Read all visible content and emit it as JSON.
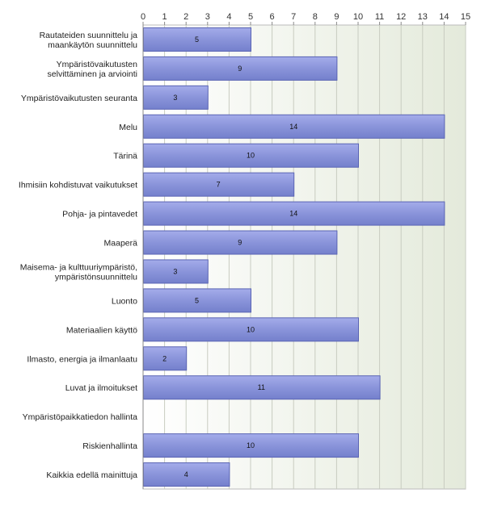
{
  "chart_data": {
    "type": "bar",
    "orientation": "horizontal",
    "categories": [
      [
        "Rautateiden suunnittelu ja",
        "maankäytön suunnittelu"
      ],
      [
        "Ympäristövaikutusten",
        "selvittäminen ja arviointi"
      ],
      [
        "Ympäristövaikutusten seuranta"
      ],
      [
        "Melu"
      ],
      [
        "Tärinä"
      ],
      [
        "Ihmisiin kohdistuvat vaikutukset"
      ],
      [
        "Pohja- ja pintavedet"
      ],
      [
        "Maaperä"
      ],
      [
        "Maisema- ja kulttuuriympäristö,",
        "ympäristönsuunnittelu"
      ],
      [
        "Luonto"
      ],
      [
        "Materiaalien käyttö"
      ],
      [
        "Ilmasto, energia ja ilmanlaatu"
      ],
      [
        "Luvat ja ilmoitukset"
      ],
      [
        "Ympäristöpaikkatiedon hallinta"
      ],
      [
        "Riskienhallinta"
      ],
      [
        "Kaikkia edellä mainittuja"
      ]
    ],
    "values": [
      5,
      9,
      3,
      14,
      10,
      7,
      14,
      9,
      3,
      5,
      10,
      2,
      11,
      0,
      10,
      4
    ],
    "xlim": [
      0,
      15
    ],
    "ticks": [
      0,
      1,
      2,
      3,
      4,
      5,
      6,
      7,
      8,
      9,
      10,
      11,
      12,
      13,
      14,
      15
    ],
    "axis_position": "top",
    "grid": true,
    "title": "",
    "xlabel": "",
    "ylabel": "",
    "colors": {
      "bar_fill": "#8c96dc",
      "bar_stroke": "#5a64b4",
      "plot_bg_start": "#ffffff",
      "plot_bg_end": "#e4eadb",
      "grid": "#c8ccc0",
      "axis": "#888888"
    }
  }
}
